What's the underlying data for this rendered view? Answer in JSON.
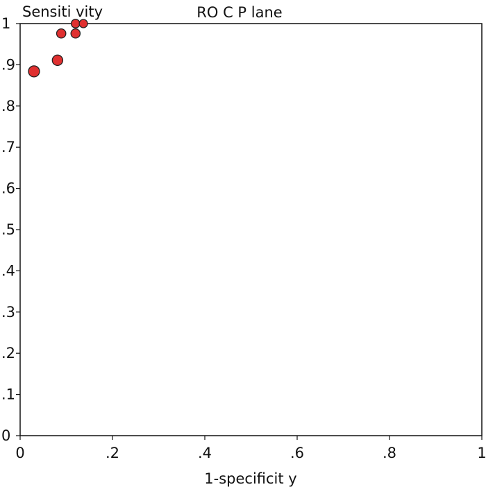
{
  "chart_data": {
    "type": "scatter",
    "title": "RO C P lane",
    "ylabel": "Sensiti vity",
    "xlabel": "1-specificit y",
    "xlim": [
      0,
      1
    ],
    "ylim": [
      0,
      1
    ],
    "grid": false,
    "x_ticks": [
      {
        "value": 0,
        "label": "0"
      },
      {
        "value": 0.2,
        "label": ".2"
      },
      {
        "value": 0.4,
        "label": ".4"
      },
      {
        "value": 0.6,
        "label": ".6"
      },
      {
        "value": 0.8,
        "label": ".8"
      },
      {
        "value": 1,
        "label": "1"
      }
    ],
    "y_ticks": [
      {
        "value": 0,
        "label": "0"
      },
      {
        "value": 0.1,
        "label": ".1"
      },
      {
        "value": 0.2,
        "label": ".2"
      },
      {
        "value": 0.3,
        "label": ".3"
      },
      {
        "value": 0.4,
        "label": ".4"
      },
      {
        "value": 0.5,
        "label": ".5"
      },
      {
        "value": 0.6,
        "label": ".6"
      },
      {
        "value": 0.7,
        "label": ".7"
      },
      {
        "value": 0.8,
        "label": ".8"
      },
      {
        "value": 0.9,
        "label": ".9"
      },
      {
        "value": 1,
        "label": "1"
      }
    ],
    "points": [
      {
        "x": 0.03,
        "y": 0.884,
        "weight": 1.0
      },
      {
        "x": 0.081,
        "y": 0.911,
        "weight": 0.9
      },
      {
        "x": 0.089,
        "y": 0.976,
        "weight": 0.7
      },
      {
        "x": 0.12,
        "y": 0.976,
        "weight": 0.7
      },
      {
        "x": 0.12,
        "y": 1.0,
        "weight": 0.6
      },
      {
        "x": 0.137,
        "y": 1.0,
        "weight": 0.55
      }
    ],
    "marker_color": "#e03030",
    "marker_edge_color": "#222222"
  }
}
